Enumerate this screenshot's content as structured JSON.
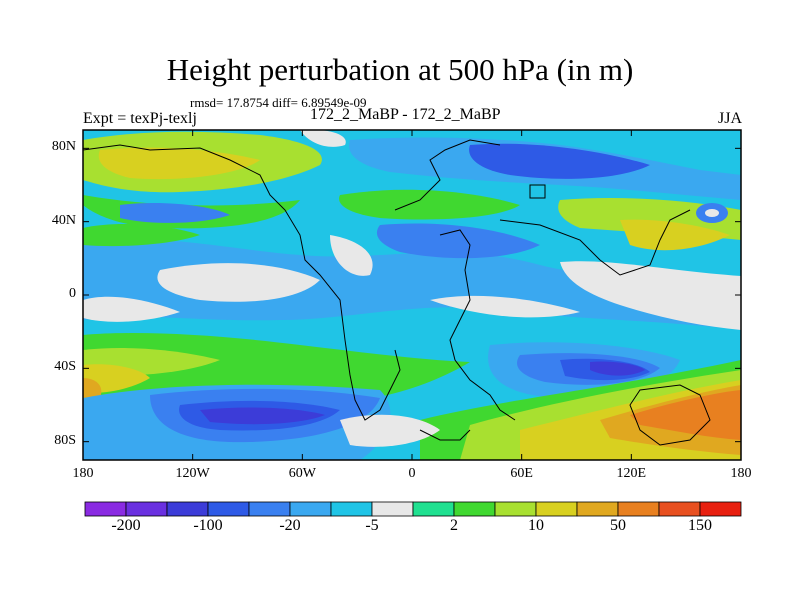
{
  "title": "Height perturbation at 500 hPa (in m)",
  "stats": "rmsd= 17.8754 diff= 6.89549e-09",
  "left_title": "Expt = texPj-texlj",
  "center_title": "172_2_MaBP - 172_2_MaBP",
  "right_title": "JJA",
  "x_ticks": [
    "180",
    "120W",
    "60W",
    "0",
    "60E",
    "120E",
    "180"
  ],
  "y_ticks": [
    "80N",
    "40N",
    "0",
    "40S",
    "80S"
  ],
  "colorbar": {
    "colors": [
      "#8a2be2",
      "#6a30e0",
      "#3c3cd8",
      "#2e5ae6",
      "#3a80f0",
      "#3aa8f0",
      "#20c4e6",
      "#e8e8e8",
      "#20e090",
      "#40d830",
      "#a8e030",
      "#d8d020",
      "#e0a820",
      "#e88020",
      "#e85020",
      "#e82010"
    ],
    "labels": [
      "-200",
      "-100",
      "-20",
      "-5",
      "2",
      "10",
      "50",
      "150"
    ]
  }
}
